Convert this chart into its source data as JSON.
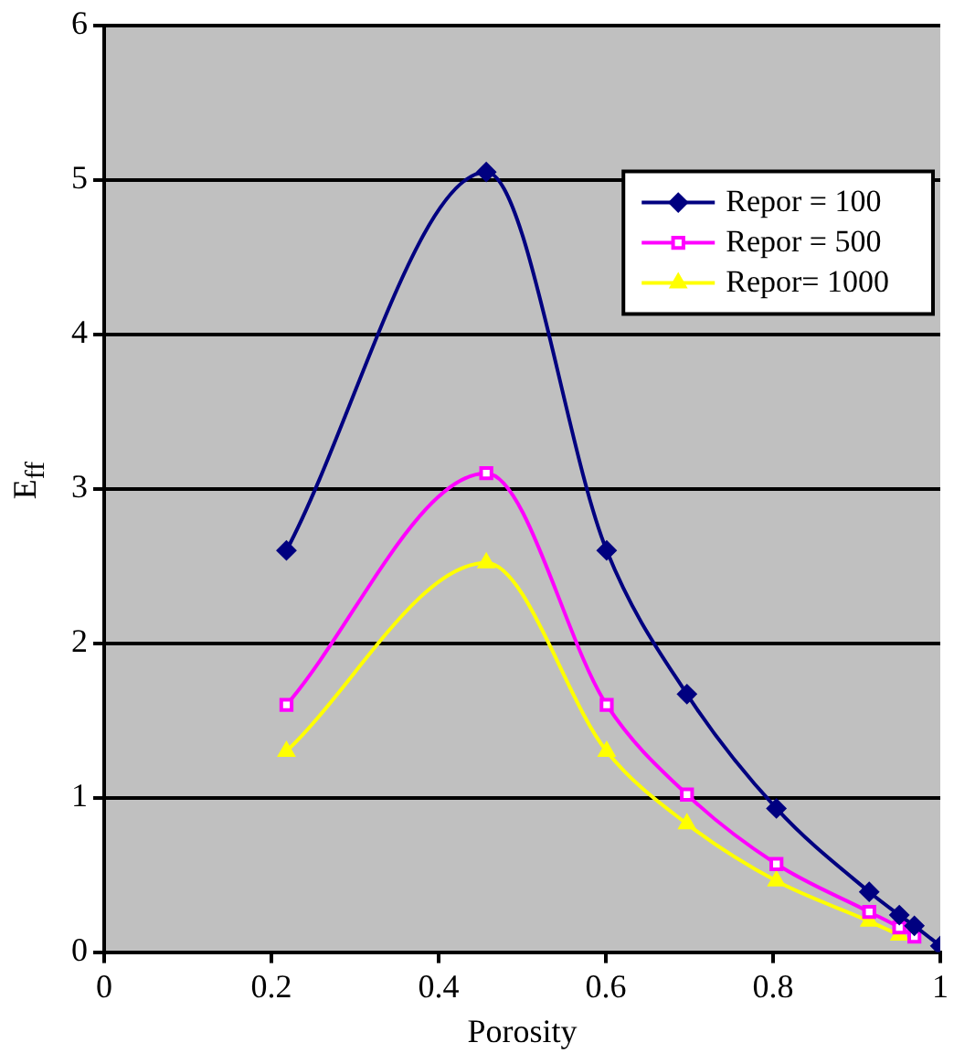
{
  "chart_data": {
    "type": "line",
    "xlabel": "Porosity",
    "ylabel": "E$_{ff}$",
    "xlim": [
      0,
      1
    ],
    "xticks": [
      0,
      0.2,
      0.4,
      0.6,
      0.8,
      1
    ],
    "ylim": [
      0,
      6
    ],
    "yticks": [
      0,
      1,
      2,
      3,
      4,
      5,
      6
    ],
    "grid": "y",
    "legend": "top right",
    "x": [
      0.218,
      0.457,
      0.601,
      0.697,
      0.804,
      0.915,
      0.951,
      0.969,
      1.0
    ],
    "series": [
      {
        "name": "Repor = 100",
        "color": "#000080",
        "marker": "diamond",
        "values": [
          2.6,
          5.05,
          2.6,
          1.67,
          0.93,
          0.39,
          0.24,
          0.17,
          0.04
        ]
      },
      {
        "name": "Repor = 500",
        "color": "#ff00ff",
        "marker": "square",
        "values": [
          1.6,
          3.1,
          1.6,
          1.02,
          0.57,
          0.26,
          0.16,
          0.1,
          null
        ]
      },
      {
        "name": "Repor= 1000",
        "color": "#ffff00",
        "marker": "triangle",
        "values": [
          1.3,
          2.52,
          1.3,
          0.83,
          0.46,
          0.2,
          0.11,
          null,
          null
        ]
      }
    ]
  }
}
